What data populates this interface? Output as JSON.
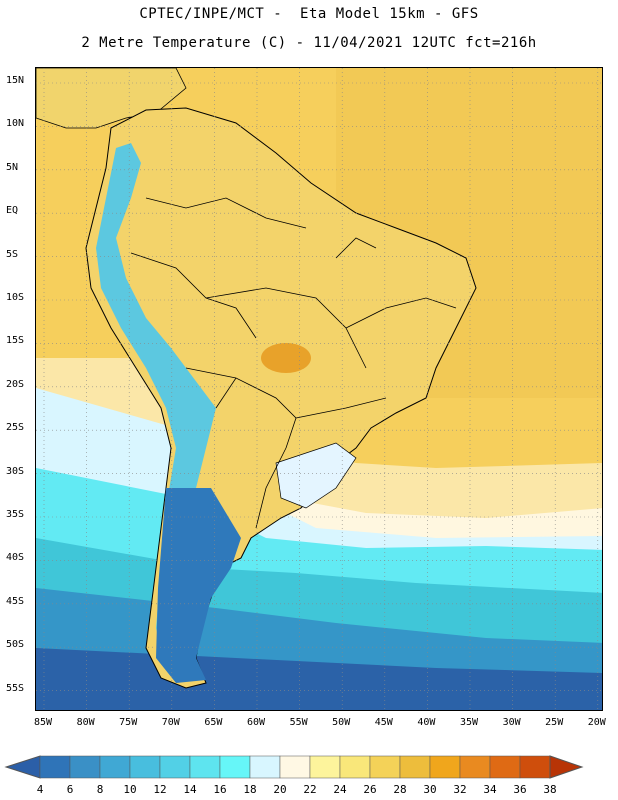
{
  "header": {
    "title_line1": "CPTEC/INPE/MCT -  Eta Model 15km - GFS",
    "title_line2": "2 Metre Temperature (C) - 11/04/2021 12UTC fct=216h"
  },
  "map": {
    "lat_labels": [
      "15N",
      "10N",
      "5N",
      "EQ",
      "5S",
      "10S",
      "15S",
      "20S",
      "25S",
      "30S",
      "35S",
      "40S",
      "45S",
      "50S",
      "55S"
    ],
    "lon_labels": [
      "85W",
      "80W",
      "75W",
      "70W",
      "65W",
      "60W",
      "55W",
      "50W",
      "45W",
      "40W",
      "35W",
      "30W",
      "25W",
      "20W"
    ],
    "grid": "dotted",
    "colors": {
      "ocean_warm": "#f5ce5a",
      "land_warm": "#f3d36a",
      "hot": "#e9a42a",
      "cool_ocean": "#fffbe8",
      "cold1": "#d7f6ff",
      "cold2": "#5cecf5",
      "cold3": "#3ec6d7",
      "cold4": "#3498c8",
      "cold5": "#2a62a8"
    }
  },
  "colorbar": {
    "labels": [
      "4",
      "6",
      "8",
      "10",
      "12",
      "14",
      "16",
      "18",
      "20",
      "22",
      "24",
      "26",
      "28",
      "30",
      "32",
      "34",
      "36",
      "38"
    ],
    "colors": [
      "#2b5fa8",
      "#2f74b8",
      "#3a90c6",
      "#40a8d4",
      "#48bede",
      "#52d0e6",
      "#5ee4ef",
      "#66f6f8",
      "#d8f6ff",
      "#fff8e4",
      "#fdf49c",
      "#f9e77a",
      "#f4d258",
      "#edbd3c",
      "#f0a61c",
      "#e98a20",
      "#df6a14",
      "#cf4e0c",
      "#b83406"
    ]
  }
}
